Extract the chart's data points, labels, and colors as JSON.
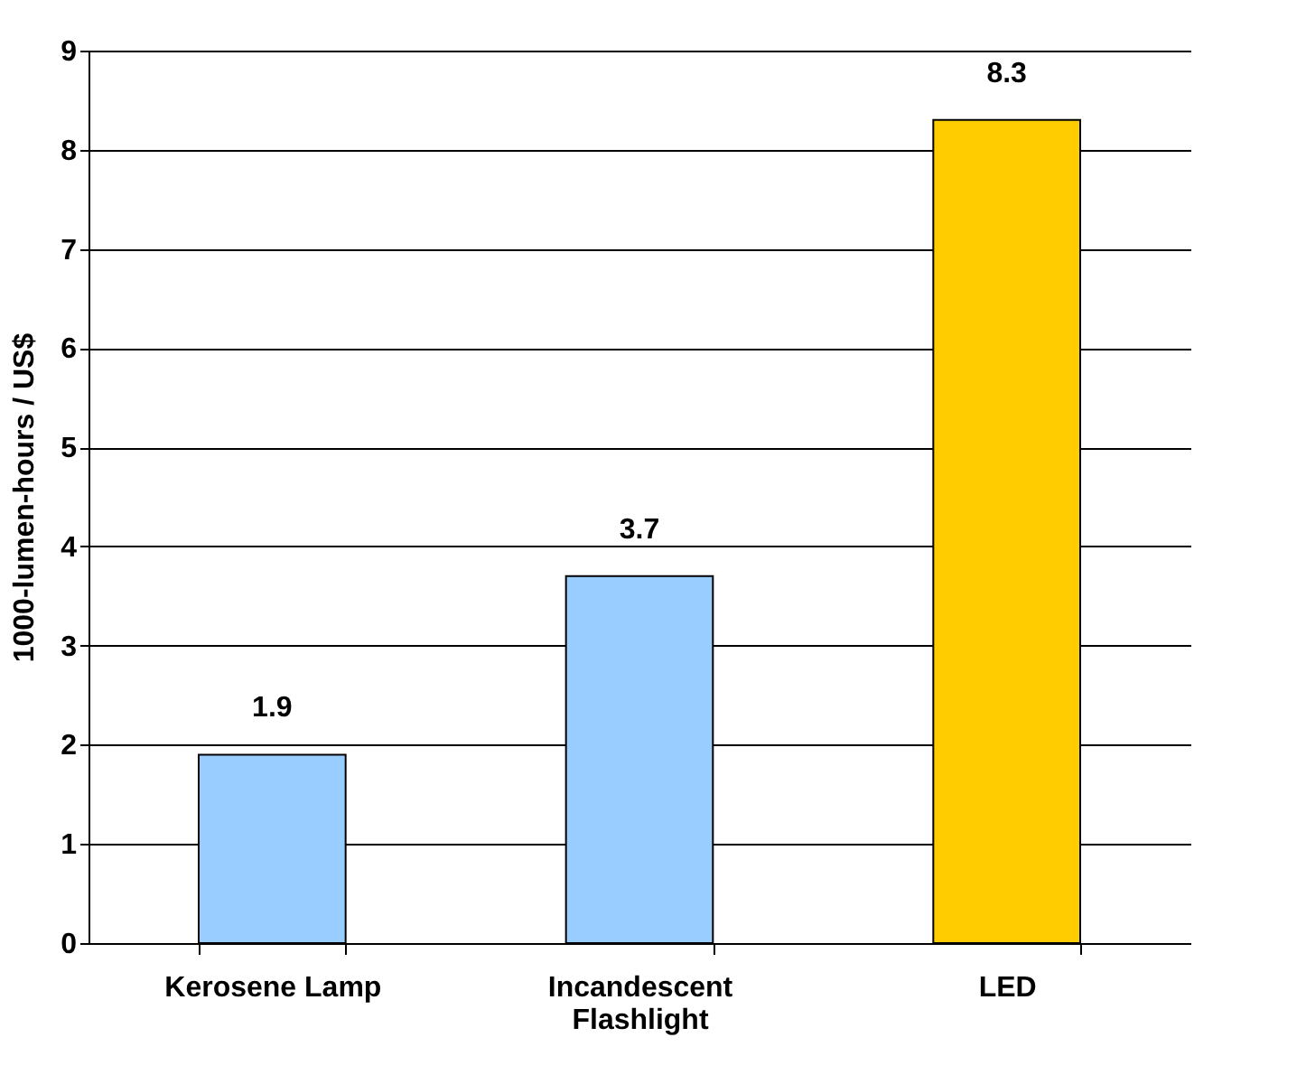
{
  "chart_data": {
    "type": "bar",
    "ylabel": "1000-lumen-hours / US$",
    "categories": [
      "Kerosene Lamp",
      "Incandescent Flashlight",
      "LED"
    ],
    "values": [
      1.9,
      3.7,
      8.3
    ],
    "colors": [
      "#99ccff",
      "#99ccff",
      "#ffcc00"
    ],
    "ylim": [
      0,
      9
    ],
    "yticks": [
      0,
      1,
      2,
      3,
      4,
      5,
      6,
      7,
      8,
      9
    ],
    "grid": "y",
    "data_labels": true
  }
}
